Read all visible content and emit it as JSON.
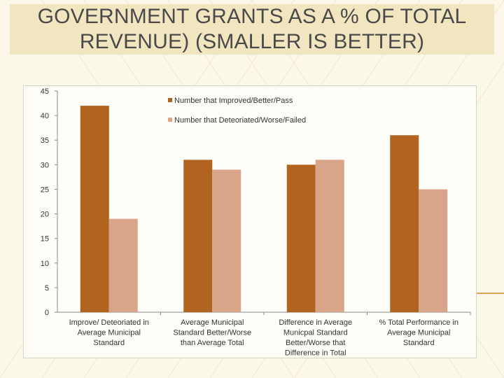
{
  "slide": {
    "title_line1": "GOVERNMENT GRANTS AS A % OF TOTAL",
    "title_line2": "REVENUE) (SMALLER IS BETTER)"
  },
  "colors": {
    "series1": "#b0641f",
    "series2": "#d8a58a",
    "title_band": "#f2e6c1"
  },
  "chart_data": {
    "type": "bar",
    "categories": [
      [
        "Improve/ Deteoriated in",
        "Average Municipal",
        "Standard"
      ],
      [
        "Average Municipal",
        "Standard Better/Worse",
        "than Average Total"
      ],
      [
        "Difference in Average",
        "Municpal Standard",
        "Better/Worse that",
        "Difference in Total"
      ],
      [
        "% Total Performance in",
        "Average Municipal",
        "Standard"
      ]
    ],
    "series": [
      {
        "name": "Number that Improved/Better/Pass",
        "values": [
          42,
          31,
          30,
          36
        ]
      },
      {
        "name": "Number that Deteoriated/Worse/Failed",
        "values": [
          19,
          29,
          31,
          25
        ]
      }
    ],
    "ylim": [
      0,
      45
    ],
    "yticks": [
      0,
      5,
      10,
      15,
      20,
      25,
      30,
      35,
      40,
      45
    ],
    "grid": false,
    "legend_position": "top-right"
  }
}
